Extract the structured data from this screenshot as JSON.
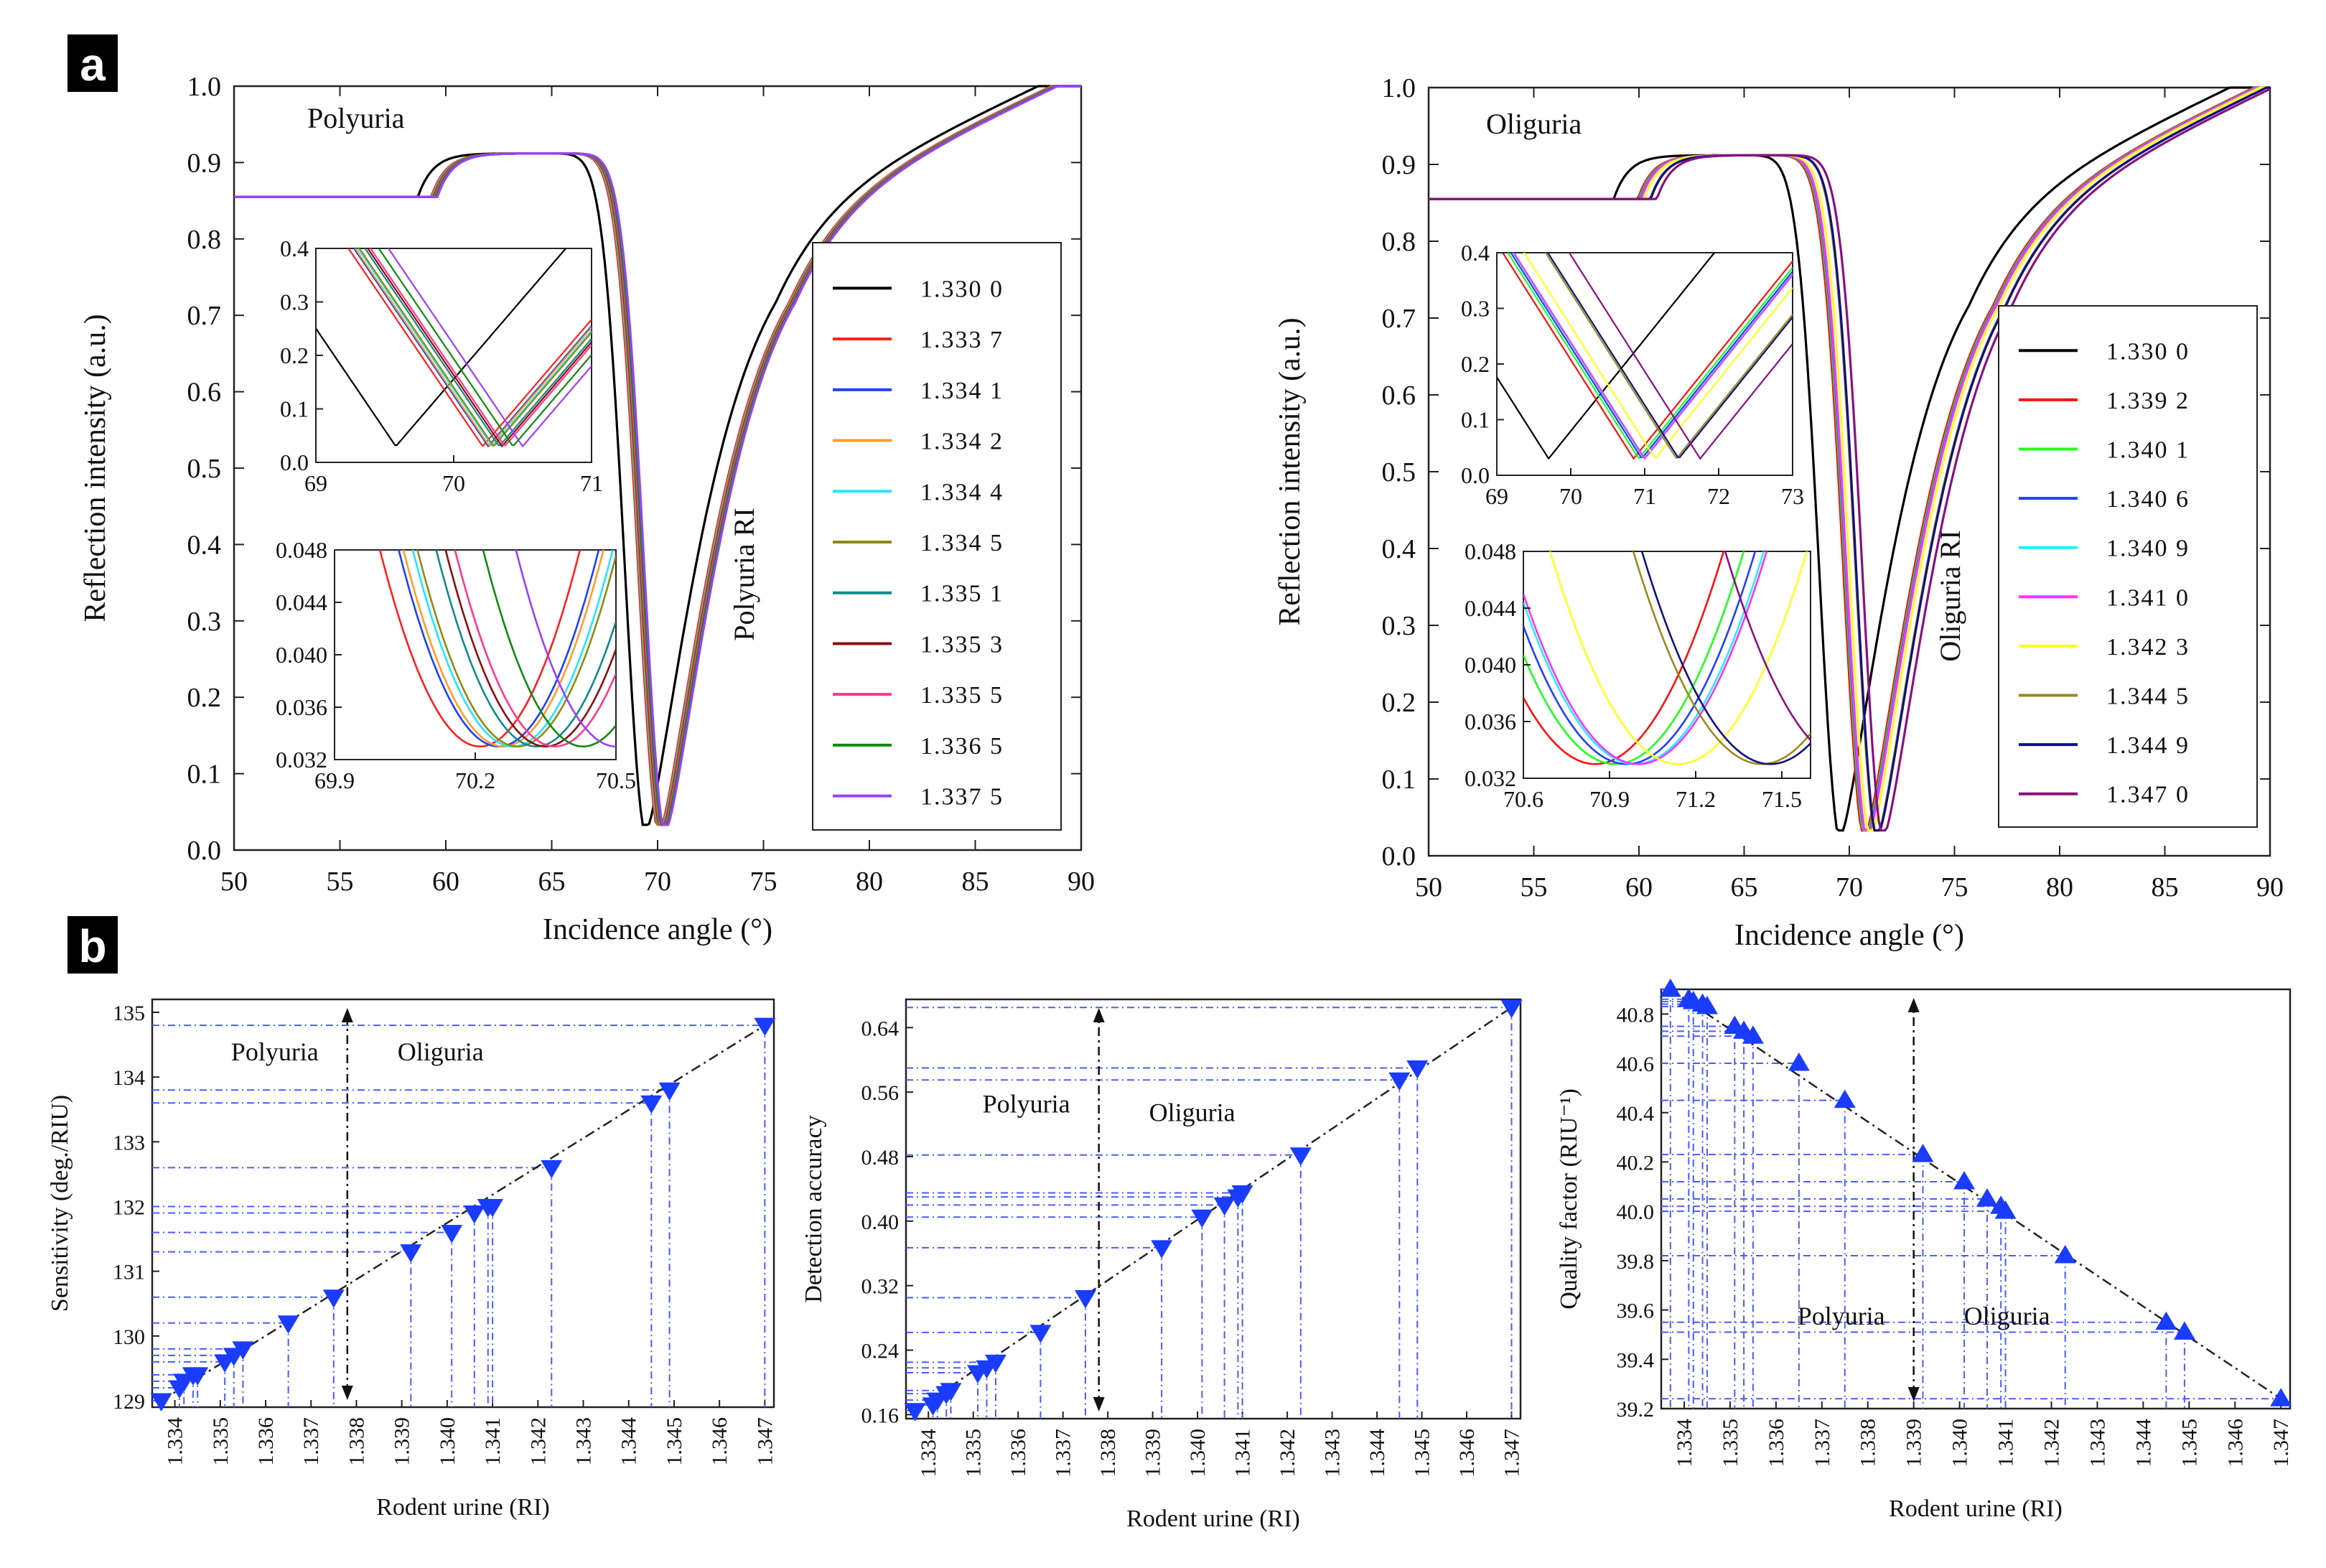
{
  "panels": {
    "a": "a",
    "b": "b"
  },
  "colors": {
    "1.3300": "#000000",
    "1.3337": "#ff2020",
    "1.3341": "#2040ff",
    "1.3342": "#ff9c30",
    "1.3344": "#20e8ff",
    "1.3345": "#8c8c10",
    "1.3351": "#108a8a",
    "1.3353": "#8a1010",
    "1.3355": "#ff3a8a",
    "1.3365": "#108a10",
    "1.3375": "#9a40ff",
    "1.3392": "#ff1010",
    "1.3401": "#20ff20",
    "1.3406": "#2040ff",
    "1.3409": "#20f0ff",
    "1.3410": "#ff30ff",
    "1.3423": "#ffff20",
    "1.3445": "#9a8a20",
    "1.3449": "#101080",
    "1.3470": "#8a1080",
    "marker": "#1a3cff",
    "guide": "#4a5cff",
    "trend": "#222222"
  },
  "chart_data": [
    {
      "id": "polyuria-main",
      "type": "line",
      "title": "Polyuria",
      "annotation": "Polyuria RI",
      "xlabel": "Incidence angle (°)",
      "ylabel": "Reflection intensity (a.u.)",
      "xlim": [
        50,
        90
      ],
      "ylim": [
        0,
        1.0
      ],
      "xticks": [
        "50",
        "55",
        "60",
        "65",
        "70",
        "75",
        "80",
        "85",
        "90"
      ],
      "yticks": [
        "0.0",
        "0.1",
        "0.2",
        "0.3",
        "0.4",
        "0.5",
        "0.6",
        "0.7",
        "0.8",
        "0.9",
        "1.0"
      ],
      "legend": [
        "1.3300",
        "1.3337",
        "1.3341",
        "1.3342",
        "1.3344",
        "1.3345",
        "1.3351",
        "1.3353",
        "1.3355",
        "1.3365",
        "1.3375"
      ],
      "legend_text": [
        "1.330 0",
        "1.333 7",
        "1.334 1",
        "1.334 2",
        "1.334 4",
        "1.334 5",
        "1.335 1",
        "1.335 3",
        "1.335 5",
        "1.336 5",
        "1.337 5"
      ],
      "resonance_angle": [
        69.58,
        70.21,
        70.25,
        70.26,
        70.28,
        70.29,
        70.33,
        70.35,
        70.37,
        70.43,
        70.5
      ],
      "min_intensity": 0.033,
      "inset_coarse": {
        "xlim": [
          69,
          71
        ],
        "ylim": [
          0,
          0.4
        ],
        "xticks": [
          "69",
          "70",
          "71"
        ],
        "yticks": [
          "0.0",
          "0.1",
          "0.2",
          "0.3",
          "0.4"
        ]
      },
      "inset_fine": {
        "xlim": [
          69.9,
          70.5
        ],
        "ylim": [
          0.032,
          0.048
        ],
        "xticks": [
          "69.9",
          "70.2",
          "70.5"
        ],
        "yticks": [
          "0.032",
          "0.036",
          "0.040",
          "0.044",
          "0.048"
        ]
      }
    },
    {
      "id": "oliguria-main",
      "type": "line",
      "title": "Oliguria",
      "annotation": "Oliguria RI",
      "xlabel": "Incidence angle (°)",
      "ylabel": "Reflection intensity (a.u.)",
      "xlim": [
        50,
        90
      ],
      "ylim": [
        0,
        1.0
      ],
      "xticks": [
        "50",
        "55",
        "60",
        "65",
        "70",
        "75",
        "80",
        "85",
        "90"
      ],
      "yticks": [
        "0.0",
        "0.1",
        "0.2",
        "0.3",
        "0.4",
        "0.5",
        "0.6",
        "0.7",
        "0.8",
        "0.9",
        "1.0"
      ],
      "legend": [
        "1.3300",
        "1.3392",
        "1.3401",
        "1.3406",
        "1.3409",
        "1.3410",
        "1.3423",
        "1.3445",
        "1.3449",
        "1.3470"
      ],
      "legend_text": [
        "1.330 0",
        "1.339 2",
        "1.340 1",
        "1.340 6",
        "1.340 9",
        "1.341 0",
        "1.342 3",
        "1.344 5",
        "1.344 9",
        "1.347 0"
      ],
      "resonance_angle": [
        69.7,
        70.85,
        70.92,
        70.96,
        70.99,
        71.0,
        71.14,
        71.43,
        71.46,
        71.75
      ],
      "min_intensity": 0.033,
      "inset_coarse": {
        "xlim": [
          69,
          73
        ],
        "ylim": [
          0,
          0.4
        ],
        "xticks": [
          "69",
          "70",
          "71",
          "72",
          "73"
        ],
        "yticks": [
          "0.0",
          "0.1",
          "0.2",
          "0.3",
          "0.4"
        ]
      },
      "inset_fine": {
        "xlim": [
          70.6,
          71.6
        ],
        "ylim": [
          0.032,
          0.048
        ],
        "xticks": [
          "70.6",
          "70.9",
          "71.2",
          "71.5"
        ],
        "yticks": [
          "0.032",
          "0.036",
          "0.040",
          "0.044",
          "0.048"
        ]
      }
    },
    {
      "id": "sensitivity",
      "type": "scatter",
      "marker": "down-triangle",
      "xlabel": "Rodent urine (RI)",
      "ylabel": "Sensitivity (deg./RIU)",
      "xlim": [
        1.3335,
        1.3472
      ],
      "ylim": [
        128.9,
        135.2
      ],
      "divider_x": 1.3378,
      "left_label": "Polyuria",
      "right_label": "Oliguria",
      "xticks": [
        "1.334",
        "1.335",
        "1.336",
        "1.337",
        "1.338",
        "1.339",
        "1.340",
        "1.341",
        "1.342",
        "1.343",
        "1.344",
        "1.345",
        "1.346",
        "1.347"
      ],
      "yticks": [
        "129",
        "130",
        "131",
        "132",
        "133",
        "134",
        "135"
      ],
      "x": [
        1.3337,
        1.3341,
        1.3342,
        1.3344,
        1.3345,
        1.3351,
        1.3353,
        1.3355,
        1.3365,
        1.3375,
        1.3392,
        1.3401,
        1.3406,
        1.3409,
        1.341,
        1.3423,
        1.3445,
        1.3449,
        1.347
      ],
      "y": [
        129.0,
        129.2,
        129.3,
        129.4,
        129.4,
        129.6,
        129.7,
        129.8,
        130.2,
        130.6,
        131.3,
        131.6,
        131.9,
        132.0,
        132.0,
        132.6,
        133.6,
        133.8,
        134.8
      ]
    },
    {
      "id": "detection-accuracy",
      "type": "scatter",
      "marker": "down-triangle",
      "xlabel": "Rodent urine (RI)",
      "ylabel": "Detection accuracy",
      "xlim": [
        1.3335,
        1.3472
      ],
      "ylim": [
        0.155,
        0.675
      ],
      "divider_x": 1.3378,
      "left_label": "Polyuria",
      "right_label": "Oliguria",
      "xticks": [
        "1.334",
        "1.335",
        "1.336",
        "1.337",
        "1.338",
        "1.339",
        "1.340",
        "1.341",
        "1.342",
        "1.343",
        "1.344",
        "1.345",
        "1.346",
        "1.347"
      ],
      "yticks": [
        "0.16",
        "0.24",
        "0.32",
        "0.40",
        "0.48",
        "0.56",
        "0.64"
      ],
      "x": [
        1.3337,
        1.3341,
        1.3342,
        1.3344,
        1.3345,
        1.3351,
        1.3353,
        1.3355,
        1.3365,
        1.3375,
        1.3392,
        1.3401,
        1.3406,
        1.3409,
        1.341,
        1.3423,
        1.3445,
        1.3449,
        1.347
      ],
      "y": [
        0.165,
        0.172,
        0.178,
        0.186,
        0.19,
        0.212,
        0.218,
        0.225,
        0.262,
        0.305,
        0.367,
        0.405,
        0.42,
        0.43,
        0.435,
        0.482,
        0.575,
        0.59,
        0.665
      ]
    },
    {
      "id": "quality-factor",
      "type": "scatter",
      "marker": "up-triangle",
      "xlabel": "Rodent urine (RI)",
      "ylabel": "Quality factor (RIU⁻¹)",
      "xlim": [
        1.3335,
        1.3472
      ],
      "ylim": [
        39.2,
        40.9
      ],
      "divider_x": 1.339,
      "left_label": "Polyuria",
      "right_label": "Oliguria",
      "xticks": [
        "1.334",
        "1.335",
        "1.336",
        "1.337",
        "1.338",
        "1.339",
        "1.340",
        "1.341",
        "1.342",
        "1.343",
        "1.344",
        "1.345",
        "1.346",
        "1.347"
      ],
      "yticks": [
        "39.2",
        "39.4",
        "39.6",
        "39.8",
        "40.0",
        "40.2",
        "40.4",
        "40.6",
        "40.8"
      ],
      "x": [
        1.3337,
        1.3341,
        1.3342,
        1.3344,
        1.3345,
        1.3351,
        1.3353,
        1.3355,
        1.3365,
        1.3375,
        1.3392,
        1.3401,
        1.3406,
        1.3409,
        1.341,
        1.3423,
        1.3445,
        1.3449,
        1.347
      ],
      "y": [
        40.9,
        40.86,
        40.85,
        40.84,
        40.83,
        40.75,
        40.73,
        40.71,
        40.6,
        40.45,
        40.23,
        40.12,
        40.05,
        40.02,
        40.0,
        39.82,
        39.55,
        39.51,
        39.24
      ]
    }
  ]
}
